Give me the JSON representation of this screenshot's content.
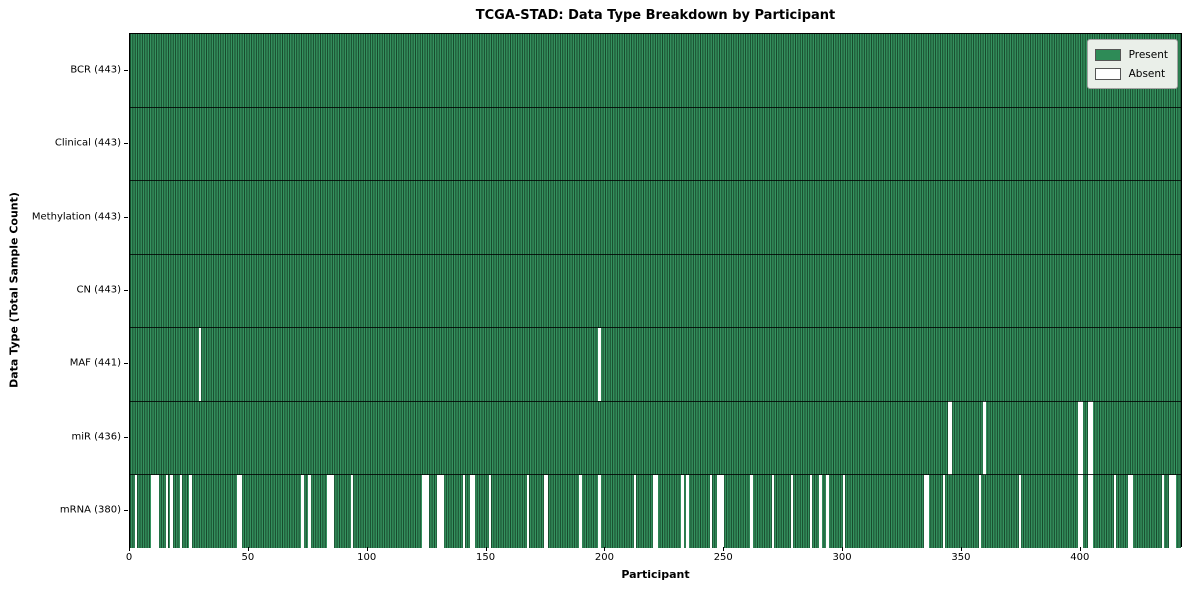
{
  "chart_data": {
    "type": "heatmap",
    "title": "TCGA-STAD: Data Type Breakdown by Participant",
    "xlabel": "Participant",
    "ylabel": "Data Type (Total Sample Count)",
    "x_ticks": [
      0,
      50,
      100,
      150,
      200,
      250,
      300,
      350,
      400
    ],
    "x_range": [
      0,
      443
    ],
    "n_participants": 443,
    "grid": false,
    "legend": {
      "position": "upper right",
      "entries": [
        {
          "label": "Present",
          "color": "#2e8b57"
        },
        {
          "label": "Absent",
          "color": "#ffffff"
        }
      ]
    },
    "rows": [
      {
        "name": "BCR",
        "label": "BCR (443)",
        "count": 443,
        "absent": []
      },
      {
        "name": "Clinical",
        "label": "Clinical (443)",
        "count": 443,
        "absent": []
      },
      {
        "name": "Methylation",
        "label": "Methylation (443)",
        "count": 443,
        "absent": []
      },
      {
        "name": "CN",
        "label": "CN (443)",
        "count": 443,
        "absent": []
      },
      {
        "name": "MAF",
        "label": "MAF (441)",
        "count": 441,
        "absent": [
          29,
          197
        ]
      },
      {
        "name": "miR",
        "label": "miR (436)",
        "count": 436,
        "absent": [
          344,
          345,
          359,
          399,
          400,
          403,
          404
        ]
      },
      {
        "name": "mRNA",
        "label": "mRNA (380)",
        "count": 380,
        "absent": [
          2,
          9,
          10,
          11,
          15,
          17,
          21,
          25,
          45,
          46,
          72,
          75,
          83,
          84,
          85,
          93,
          123,
          124,
          125,
          129,
          130,
          131,
          140,
          143,
          144,
          151,
          167,
          174,
          175,
          189,
          197,
          212,
          220,
          221,
          232,
          234,
          244,
          247,
          248,
          249,
          261,
          270,
          278,
          286,
          290,
          293,
          300,
          334,
          335,
          342,
          357,
          374,
          399,
          400,
          403,
          404,
          414,
          420,
          421,
          434,
          437,
          438,
          439
        ]
      }
    ],
    "colors": {
      "present": "#2e8b57",
      "present_stripe_light": "#35925f",
      "bar_edge": "#17482b",
      "absent": "#ffffff",
      "plot_border": "#000000",
      "legend_background": "#eaefe9"
    }
  }
}
